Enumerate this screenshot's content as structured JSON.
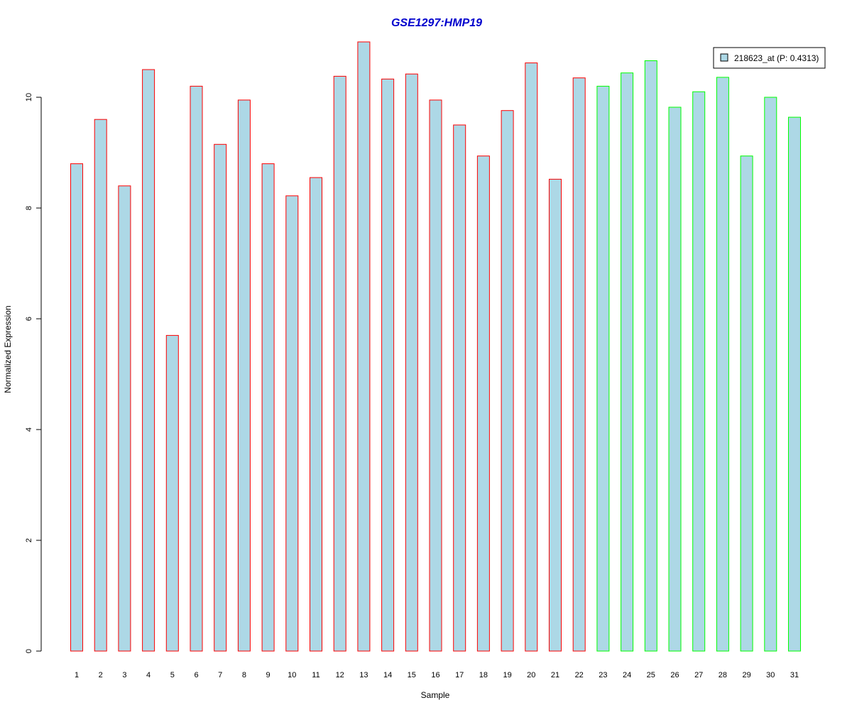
{
  "chart_data": {
    "type": "bar",
    "title": "GSE1297:HMP19",
    "xlabel": "Sample",
    "ylabel": "Normalized Expression",
    "ylim": [
      0,
      11
    ],
    "yticks": [
      0,
      2,
      4,
      6,
      8,
      10
    ],
    "categories": [
      "1",
      "2",
      "3",
      "4",
      "5",
      "6",
      "7",
      "8",
      "9",
      "10",
      "11",
      "12",
      "13",
      "14",
      "15",
      "16",
      "17",
      "18",
      "19",
      "20",
      "21",
      "22",
      "23",
      "24",
      "25",
      "26",
      "27",
      "28",
      "29",
      "30",
      "31"
    ],
    "series": [
      {
        "name": "218623_at (P: 0.4313)",
        "values": [
          8.8,
          9.6,
          8.4,
          10.5,
          5.7,
          10.2,
          9.15,
          9.95,
          8.8,
          8.22,
          8.55,
          10.38,
          11.0,
          10.33,
          10.42,
          9.95,
          9.5,
          8.94,
          9.76,
          10.62,
          8.52,
          10.35,
          10.2,
          10.44,
          10.66,
          9.82,
          10.1,
          10.36,
          8.94,
          10.0,
          9.64
        ]
      }
    ],
    "bar_group": [
      "red",
      "red",
      "red",
      "red",
      "red",
      "red",
      "red",
      "red",
      "red",
      "red",
      "red",
      "red",
      "red",
      "red",
      "red",
      "red",
      "red",
      "red",
      "red",
      "red",
      "red",
      "red",
      "green",
      "green",
      "green",
      "green",
      "green",
      "green",
      "green",
      "green",
      "green"
    ],
    "colors": {
      "bar_fill": "#add8e6",
      "red": "#ff0000",
      "green": "#00ff00",
      "title": "#0000cd",
      "axis": "#000000"
    },
    "legend_position": "top-right",
    "grid": false
  }
}
